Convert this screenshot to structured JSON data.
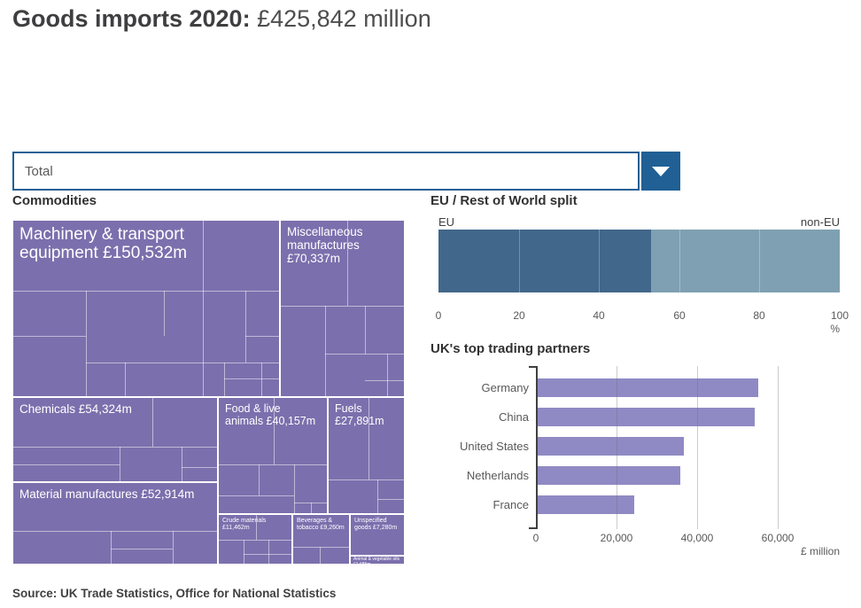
{
  "page": {
    "title_bold": "Goods imports 2020:",
    "title_value": " £425,842 million",
    "source": "Source: UK Trade Statistics, Office for National Statistics"
  },
  "filter": {
    "selected": "Total"
  },
  "commodities": {
    "heading": "Commodities",
    "items": {
      "machinery": {
        "label": "Machinery & transport equipment £150,532m"
      },
      "misc": {
        "label": "Miscellaneous manufactures £70,337m"
      },
      "chemicals": {
        "label": "Chemicals £54,324m"
      },
      "material": {
        "label": "Material manufactures £52,914m"
      },
      "food": {
        "label": "Food & live animals £40,157m"
      },
      "fuels": {
        "label": "Fuels £27,891m"
      },
      "crude": {
        "label": "Crude materials £11,462m"
      },
      "beverages": {
        "label": "Beverages & tobacco £9,260m"
      },
      "unspecified": {
        "label": "Unspecified goods £7,280m"
      },
      "animal": {
        "label": "Animal & vegetable oils £1,685m"
      }
    }
  },
  "eu_split": {
    "heading": "EU / Rest of World split",
    "left_label": "EU",
    "right_label": "non-EU",
    "eu_pct": 53,
    "non_eu_pct": 47,
    "ticks": [
      "0",
      "20",
      "40",
      "60",
      "80",
      "100"
    ],
    "unit": "%"
  },
  "partners": {
    "heading": "UK's top trading partners",
    "categories": [
      "Germany",
      "China",
      "United States",
      "Netherlands",
      "France"
    ],
    "values": [
      54700,
      53900,
      36300,
      35400,
      24000
    ],
    "ticks": [
      "0",
      "20,000",
      "40,000",
      "60,000"
    ],
    "unit": "£ million"
  },
  "colors": {
    "treemap_purple": "#7b70ad",
    "bar_purple": "#8f8ac4",
    "eu_blue": "#41678a",
    "non_eu_blue": "#7fa0b2",
    "accent_blue": "#206095"
  },
  "chart_data": [
    {
      "type": "treemap",
      "title": "Commodities",
      "unit": "£ million",
      "total": 425842,
      "items": [
        {
          "name": "Machinery & transport equipment",
          "value": 150532
        },
        {
          "name": "Miscellaneous manufactures",
          "value": 70337
        },
        {
          "name": "Chemicals",
          "value": 54324
        },
        {
          "name": "Material manufactures",
          "value": 52914
        },
        {
          "name": "Food & live animals",
          "value": 40157
        },
        {
          "name": "Fuels",
          "value": 27891
        },
        {
          "name": "Crude materials",
          "value": 11462
        },
        {
          "name": "Beverages & tobacco",
          "value": 9260
        },
        {
          "name": "Unspecified goods",
          "value": 7280
        },
        {
          "name": "Animal & vegetable oils",
          "value": 1685
        }
      ]
    },
    {
      "type": "bar",
      "title": "EU / Rest of World split",
      "orientation": "horizontal-stacked",
      "categories": [
        "EU",
        "non-EU"
      ],
      "values": [
        53,
        47
      ],
      "xlabel": "%",
      "xlim": [
        0,
        100
      ],
      "xticks": [
        0,
        20,
        40,
        60,
        80,
        100
      ]
    },
    {
      "type": "bar",
      "title": "UK's top trading partners",
      "orientation": "horizontal",
      "categories": [
        "Germany",
        "China",
        "United States",
        "Netherlands",
        "France"
      ],
      "values": [
        54700,
        53900,
        36300,
        35400,
        24000
      ],
      "xlabel": "£ million",
      "xlim": [
        0,
        76000
      ],
      "xticks": [
        0,
        20000,
        40000,
        60000
      ]
    }
  ]
}
